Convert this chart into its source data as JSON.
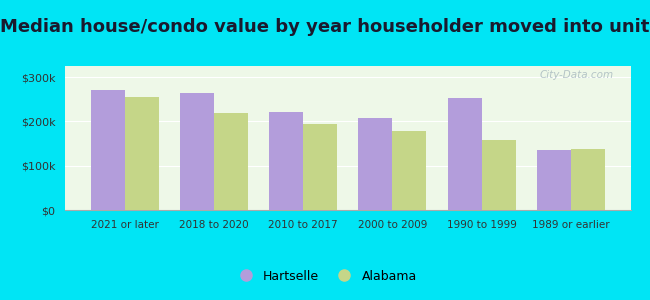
{
  "title": "Median house/condo value by year householder moved into unit",
  "categories": [
    "2021 or later",
    "2018 to 2020",
    "2010 to 2017",
    "2000 to 2009",
    "1990 to 1999",
    "1989 or earlier"
  ],
  "hartselle": [
    270000,
    265000,
    222000,
    207000,
    252000,
    135000
  ],
  "alabama": [
    255000,
    218000,
    193000,
    178000,
    158000,
    137000
  ],
  "hartselle_color": "#b39ddb",
  "alabama_color": "#c5d688",
  "background_outer": "#00e5f5",
  "background_inner": "#eef8e8",
  "yticks": [
    0,
    100000,
    200000,
    300000
  ],
  "ytick_labels": [
    "$0",
    "$100k",
    "$200k",
    "$300k"
  ],
  "ylim": [
    0,
    325000
  ],
  "legend_hartselle": "Hartselle",
  "legend_alabama": "Alabama",
  "title_fontsize": 13,
  "bar_width": 0.38,
  "watermark": "City-Data.com"
}
